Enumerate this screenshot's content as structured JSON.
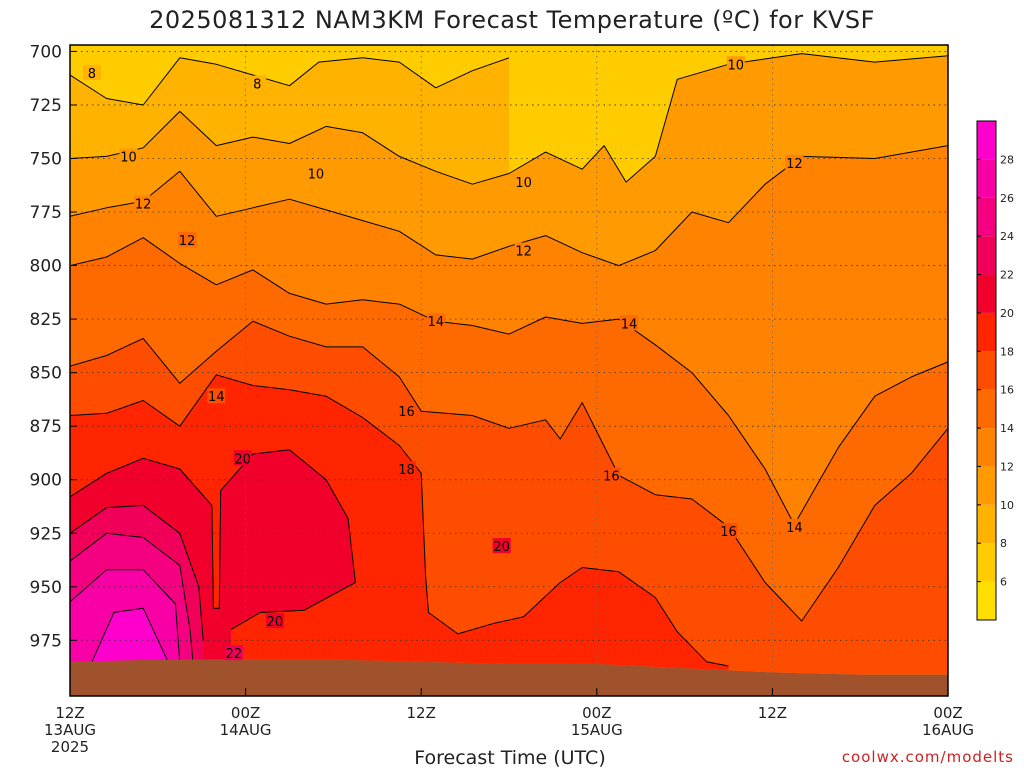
{
  "chart_data": {
    "type": "heatmap",
    "title": "2025081312 NAM3KM Forecast Temperature (ºC) for KVSF",
    "xlabel": "Forecast Time (UTC)",
    "ylabel": "",
    "units": "ºC",
    "y_axis": {
      "pressure_levels": [
        700,
        725,
        750,
        775,
        800,
        825,
        850,
        875,
        900,
        925,
        950,
        975
      ],
      "range_hPa": [
        697,
        1001
      ],
      "direction": "decreasing-up"
    },
    "x_axis": {
      "range_hours": [
        0,
        60
      ],
      "ticks": [
        {
          "hour": 0,
          "label": "12Z",
          "date": "13AUG",
          "year": "2025"
        },
        {
          "hour": 12,
          "label": "00Z",
          "date": "14AUG"
        },
        {
          "hour": 24,
          "label": "12Z"
        },
        {
          "hour": 36,
          "label": "00Z",
          "date": "15AUG"
        },
        {
          "hour": 48,
          "label": "12Z"
        },
        {
          "hour": 60,
          "label": "00Z",
          "date": "16AUG"
        }
      ]
    },
    "grid": true,
    "colorbar": {
      "labels": [
        6,
        8,
        10,
        12,
        14,
        16,
        18,
        20,
        22,
        24,
        26,
        28
      ],
      "bands": [
        {
          "from": 4,
          "to": 6,
          "color": "#FFDF00"
        },
        {
          "from": 6,
          "to": 8,
          "color": "#FFCC00"
        },
        {
          "from": 8,
          "to": 10,
          "color": "#FFB300"
        },
        {
          "from": 10,
          "to": 12,
          "color": "#FF9B00"
        },
        {
          "from": 12,
          "to": 14,
          "color": "#FF8200"
        },
        {
          "from": 14,
          "to": 16,
          "color": "#FF6A00"
        },
        {
          "from": 16,
          "to": 18,
          "color": "#FF4D00"
        },
        {
          "from": 18,
          "to": 20,
          "color": "#FF2500"
        },
        {
          "from": 20,
          "to": 22,
          "color": "#F0002A"
        },
        {
          "from": 22,
          "to": 24,
          "color": "#F00059"
        },
        {
          "from": 24,
          "to": 26,
          "color": "#F50080"
        },
        {
          "from": 26,
          "to": 28,
          "color": "#F800A6"
        },
        {
          "from": 28,
          "to": 30,
          "color": "#FF00CC"
        }
      ]
    },
    "surface_pressure": [
      {
        "hour": 0,
        "hPa": 985
      },
      {
        "hour": 6,
        "hPa": 984
      },
      {
        "hour": 12,
        "hPa": 984
      },
      {
        "hour": 18,
        "hPa": 984
      },
      {
        "hour": 24,
        "hPa": 985
      },
      {
        "hour": 30,
        "hPa": 986
      },
      {
        "hour": 36,
        "hPa": 986
      },
      {
        "hour": 42,
        "hPa": 988
      },
      {
        "hour": 48,
        "hPa": 990
      },
      {
        "hour": 54,
        "hPa": 991
      },
      {
        "hour": 60,
        "hPa": 991
      }
    ],
    "contours": [
      {
        "value": 8,
        "label": "8",
        "points": [
          [
            0,
            711
          ],
          [
            2.5,
            722
          ],
          [
            5,
            725
          ],
          [
            7.5,
            703
          ],
          [
            10,
            706
          ],
          [
            12.5,
            711
          ],
          [
            15,
            716
          ],
          [
            17,
            705
          ],
          [
            20,
            703
          ],
          [
            22.5,
            705
          ],
          [
            25,
            717
          ],
          [
            27.5,
            709
          ],
          [
            30,
            703
          ]
        ]
      },
      {
        "value": 10,
        "label": "10",
        "points": [
          [
            0,
            750
          ],
          [
            2.5,
            749
          ],
          [
            5,
            745
          ],
          [
            7.5,
            728
          ],
          [
            10,
            744
          ],
          [
            12.5,
            740
          ],
          [
            15,
            743
          ],
          [
            17.5,
            735
          ],
          [
            20,
            738
          ],
          [
            22.5,
            749
          ],
          [
            25,
            756
          ],
          [
            27.5,
            762
          ],
          [
            30,
            757
          ],
          [
            32.5,
            747
          ],
          [
            35,
            755
          ],
          [
            36.5,
            744
          ],
          [
            38,
            761
          ],
          [
            40,
            749
          ],
          [
            41.5,
            713
          ],
          [
            45,
            706
          ],
          [
            50,
            701
          ],
          [
            55,
            705
          ],
          [
            60,
            702
          ]
        ]
      },
      {
        "value": 12,
        "label": "12",
        "points": [
          [
            0,
            777
          ],
          [
            2.5,
            773
          ],
          [
            5,
            770
          ],
          [
            7.5,
            756
          ],
          [
            10,
            777
          ],
          [
            12.5,
            773
          ],
          [
            15,
            769
          ],
          [
            17.5,
            774
          ],
          [
            20,
            779
          ],
          [
            22.5,
            784
          ],
          [
            25,
            795
          ],
          [
            27.5,
            797
          ],
          [
            30,
            791
          ],
          [
            32.5,
            786
          ],
          [
            35,
            794
          ],
          [
            37.5,
            800
          ],
          [
            40,
            793
          ],
          [
            42.5,
            775
          ],
          [
            45,
            780
          ],
          [
            47.5,
            762
          ],
          [
            50,
            749
          ],
          [
            55,
            750
          ],
          [
            60,
            744
          ]
        ]
      },
      {
        "value": 14,
        "label": "14",
        "points": [
          [
            0,
            800
          ],
          [
            2.5,
            796
          ],
          [
            5,
            787
          ],
          [
            7.5,
            799
          ],
          [
            10,
            809
          ],
          [
            12.5,
            802
          ],
          [
            15,
            813
          ],
          [
            17.5,
            818
          ],
          [
            20,
            816
          ],
          [
            22.5,
            818
          ],
          [
            25,
            826
          ],
          [
            27.5,
            828
          ],
          [
            30,
            832
          ],
          [
            32.5,
            824
          ],
          [
            35,
            827
          ],
          [
            37.5,
            825
          ],
          [
            40,
            837
          ],
          [
            42.5,
            850
          ],
          [
            45,
            870
          ],
          [
            47.5,
            895
          ],
          [
            49.5,
            921
          ],
          [
            52.5,
            885
          ],
          [
            55,
            861
          ],
          [
            57.5,
            852
          ],
          [
            60,
            845
          ]
        ]
      },
      {
        "value": 16,
        "label": "16",
        "points": [
          [
            0,
            847
          ],
          [
            2.5,
            842
          ],
          [
            5,
            834
          ],
          [
            7.5,
            855
          ],
          [
            10,
            840
          ],
          [
            12.5,
            826
          ],
          [
            15,
            833
          ],
          [
            17.5,
            838
          ],
          [
            20,
            838
          ],
          [
            22.5,
            852
          ],
          [
            24,
            868
          ],
          [
            27.5,
            870
          ],
          [
            30,
            876
          ],
          [
            32.5,
            872
          ],
          [
            33.5,
            881
          ],
          [
            35,
            864
          ],
          [
            37.5,
            898
          ],
          [
            40,
            907
          ],
          [
            42.5,
            909
          ],
          [
            45,
            922
          ],
          [
            47.5,
            948
          ],
          [
            50,
            966
          ],
          [
            52.5,
            941
          ],
          [
            55,
            912
          ],
          [
            57.5,
            897
          ],
          [
            60,
            876
          ]
        ]
      },
      {
        "value": 18,
        "label": "18",
        "points": [
          [
            0,
            870
          ],
          [
            2.5,
            869
          ],
          [
            5,
            863
          ],
          [
            7.5,
            875
          ],
          [
            10,
            851
          ],
          [
            12.5,
            856
          ],
          [
            15,
            858
          ],
          [
            17.5,
            861
          ],
          [
            20,
            871
          ],
          [
            22.5,
            884
          ],
          [
            24,
            897
          ],
          [
            24.3,
            945
          ],
          [
            24.5,
            962
          ],
          [
            26.5,
            972
          ],
          [
            29,
            967
          ],
          [
            31,
            964
          ],
          [
            33.5,
            948
          ],
          [
            35,
            941
          ],
          [
            37.5,
            943
          ],
          [
            40,
            955
          ],
          [
            41.5,
            971
          ],
          [
            43.5,
            985
          ],
          [
            45,
            987
          ]
        ]
      },
      {
        "value": 20,
        "label": "20",
        "points": [
          [
            0,
            908
          ],
          [
            2.5,
            897
          ],
          [
            5,
            890
          ],
          [
            7.5,
            895
          ],
          [
            9.7,
            912
          ],
          [
            9.8,
            960
          ],
          [
            10.2,
            960
          ],
          [
            10.3,
            905
          ],
          [
            12.5,
            888
          ],
          [
            15,
            886
          ],
          [
            17.5,
            900
          ],
          [
            19,
            918
          ],
          [
            19.5,
            948
          ],
          [
            16,
            961
          ],
          [
            13,
            962
          ],
          [
            11,
            970
          ]
        ]
      },
      {
        "value": 22,
        "label": "22",
        "points": [
          [
            0,
            925
          ],
          [
            2.5,
            913
          ],
          [
            5,
            912
          ],
          [
            7.5,
            925
          ],
          [
            8.8,
            950
          ],
          [
            9.1,
            975
          ]
        ]
      },
      {
        "value": 24,
        "label": "24",
        "points": [
          [
            0,
            938
          ],
          [
            2.5,
            925
          ],
          [
            5,
            927
          ],
          [
            7.5,
            940
          ],
          [
            8.2,
            970
          ],
          [
            8.4,
            985
          ]
        ]
      },
      {
        "value": 26,
        "label": "26",
        "points": [
          [
            0,
            957
          ],
          [
            2.5,
            942
          ],
          [
            5,
            942
          ],
          [
            7.2,
            958
          ],
          [
            7.5,
            985
          ]
        ]
      },
      {
        "value": 28,
        "label": "28",
        "points": [
          [
            1.5,
            985
          ],
          [
            3,
            962
          ],
          [
            5,
            960
          ],
          [
            6.7,
            985
          ]
        ]
      }
    ],
    "contour_labels_shown": [
      "8",
      "8",
      "10",
      "10",
      "10",
      "10",
      "12",
      "12",
      "12",
      "12",
      "14",
      "14",
      "14",
      "14",
      "16",
      "16",
      "16",
      "18",
      "20",
      "20",
      "20",
      "22"
    ]
  },
  "ui": {
    "x_tick_labels": [
      "12Z",
      "00Z",
      "12Z",
      "00Z",
      "12Z",
      "00Z"
    ],
    "x_date_labels": [
      "13AUG",
      "14AUG",
      "15AUG",
      "16AUG"
    ],
    "x_year_label": "2025",
    "credit": "coolwx.com/modelts"
  }
}
